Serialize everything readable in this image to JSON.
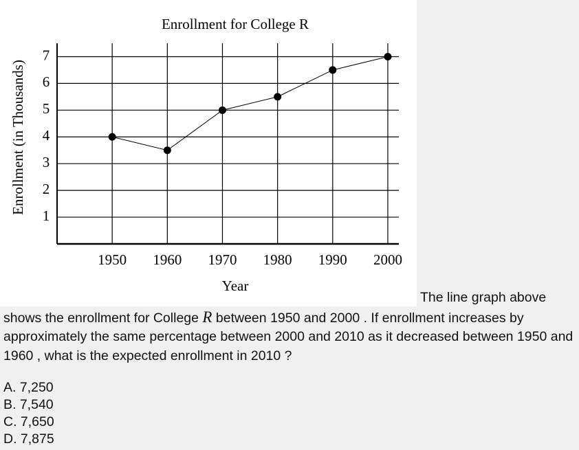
{
  "chart_data": {
    "type": "line",
    "title": "Enrollment for College R",
    "x_label": "Year",
    "y_label": "Enrollment (in Thousands)",
    "x": [
      1950,
      1960,
      1970,
      1980,
      1990,
      2000
    ],
    "series": [
      {
        "color": "#000000",
        "values": [
          4,
          3.5,
          5,
          5.5,
          6.5,
          7
        ]
      }
    ],
    "xlim": [
      1940,
      2002
    ],
    "xticks": [
      1950,
      1960,
      1970,
      1980,
      1990,
      2000
    ],
    "ylim": [
      0,
      7.5
    ],
    "yticks": [
      1,
      2,
      3,
      4,
      5,
      6,
      7
    ],
    "grid": true
  },
  "question": {
    "text_before": "The line graph above shows the enrollment for College",
    "variable": "R",
    "text_after": "between 1950 and 2000 . If enrollment increases by approximately the same percentage between 2000 and 2010 as it decreased between 1950 and 1960 , what is the expected enrollment in 2010 ?",
    "choices": [
      "A. 7,250",
      "B. 7,540",
      "C. 7,650",
      "D. 7,875"
    ]
  }
}
